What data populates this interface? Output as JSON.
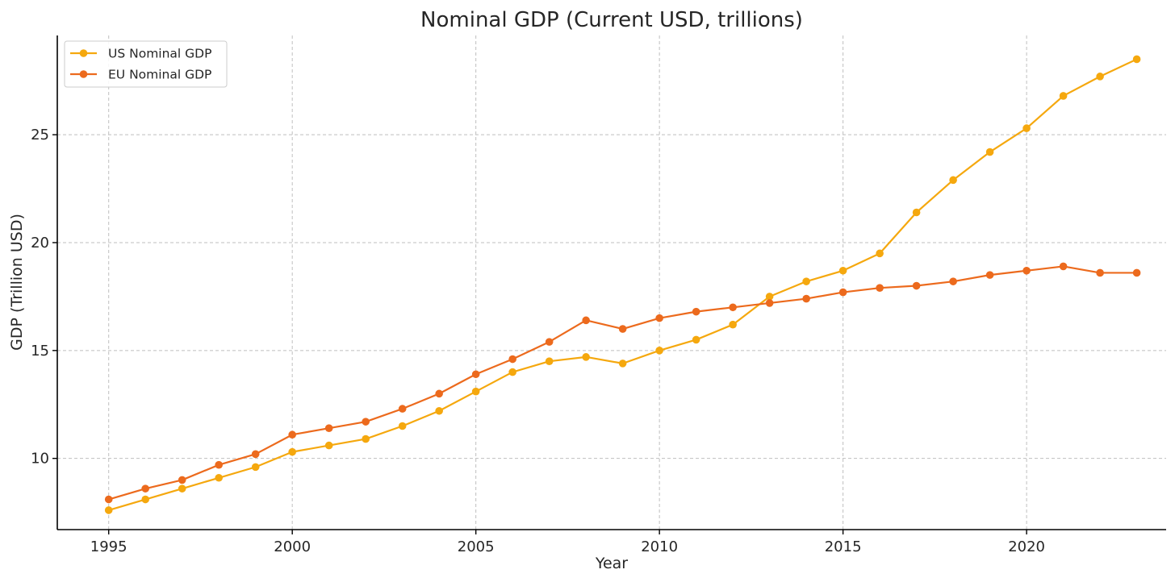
{
  "chart_data": {
    "type": "line",
    "title": "Nominal GDP (Current USD, trillions)",
    "xlabel": "Year",
    "ylabel": "GDP (Trillion USD)",
    "x": [
      1995,
      1996,
      1997,
      1998,
      1999,
      2000,
      2001,
      2002,
      2003,
      2004,
      2005,
      2006,
      2007,
      2008,
      2009,
      2010,
      2011,
      2012,
      2013,
      2014,
      2015,
      2016,
      2017,
      2018,
      2019,
      2020,
      2021,
      2022,
      2023
    ],
    "xlim": [
      1993.6,
      2023.8
    ],
    "ylim": [
      6.7,
      29.6
    ],
    "x_ticks": [
      1995,
      2000,
      2005,
      2010,
      2015,
      2020
    ],
    "y_ticks": [
      10,
      15,
      20,
      25
    ],
    "grid": true,
    "legend_position": "top-left",
    "series": [
      {
        "name": "US Nominal GDP",
        "color": "#F5A80E",
        "values": [
          7.6,
          8.1,
          8.6,
          9.1,
          9.6,
          10.3,
          10.6,
          10.9,
          11.5,
          12.2,
          13.1,
          14.0,
          14.5,
          14.7,
          14.4,
          15.0,
          15.5,
          16.2,
          17.5,
          18.2,
          18.7,
          19.5,
          21.4,
          22.9,
          24.2,
          25.3,
          26.8,
          27.7,
          28.5
        ]
      },
      {
        "name": "EU Nominal GDP",
        "color": "#EC6A1D",
        "values": [
          8.1,
          8.6,
          9.0,
          9.7,
          10.2,
          11.1,
          11.4,
          11.7,
          12.3,
          13.0,
          13.9,
          14.6,
          15.4,
          16.4,
          16.0,
          16.5,
          16.8,
          17.0,
          17.2,
          17.4,
          17.7,
          17.9,
          18.0,
          18.2,
          18.5,
          18.7,
          18.9,
          18.6,
          18.6
        ]
      }
    ]
  }
}
